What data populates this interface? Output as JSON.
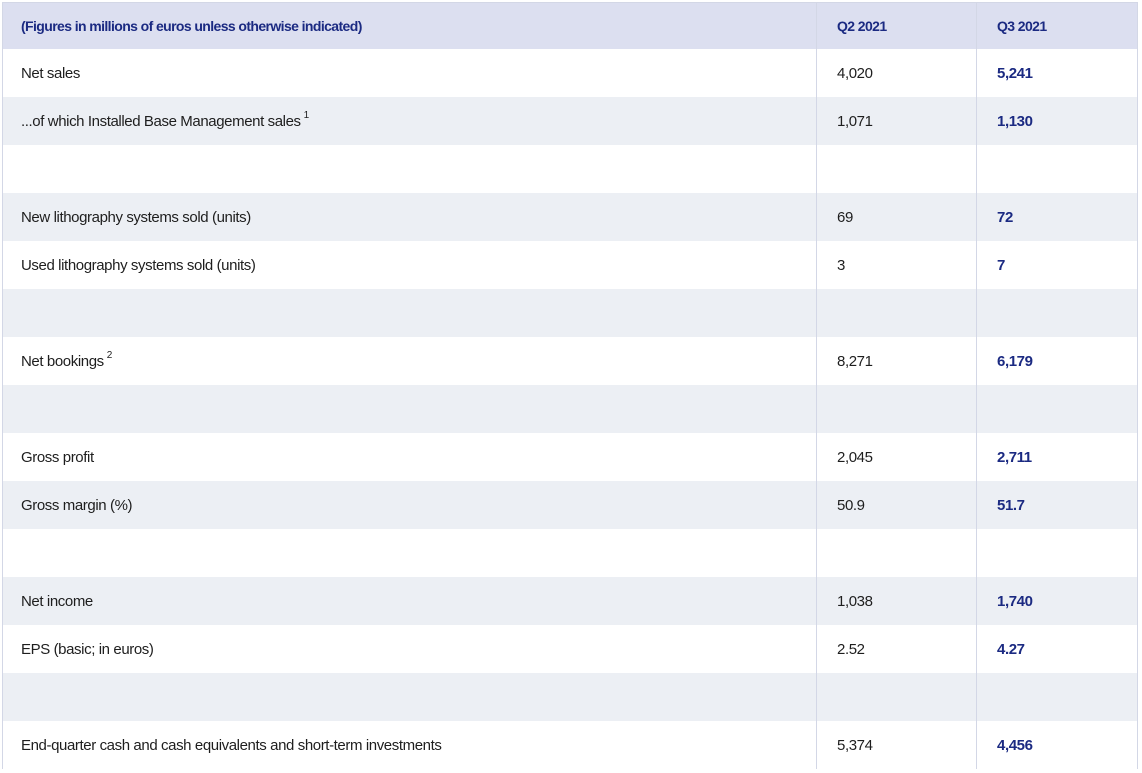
{
  "header": {
    "label": "(Figures in millions of euros unless otherwise indicated)",
    "col_q2": "Q2 2021",
    "col_q3": "Q3 2021"
  },
  "rows": [
    {
      "label": "Net sales",
      "sup": "",
      "q2": "4,020",
      "q3": "5,241"
    },
    {
      "label": "...of which Installed Base Management sales",
      "sup": "1",
      "q2": "1,071",
      "q3": "1,130"
    },
    {
      "label": "",
      "sup": "",
      "q2": "",
      "q3": ""
    },
    {
      "label": "New lithography systems sold (units)",
      "sup": "",
      "q2": "69",
      "q3": "72"
    },
    {
      "label": "Used lithography systems sold (units)",
      "sup": "",
      "q2": "3",
      "q3": "7"
    },
    {
      "label": "",
      "sup": "",
      "q2": "",
      "q3": ""
    },
    {
      "label": "Net bookings",
      "sup": "2",
      "q2": "8,271",
      "q3": "6,179"
    },
    {
      "label": "",
      "sup": "",
      "q2": "",
      "q3": ""
    },
    {
      "label": "Gross profit",
      "sup": "",
      "q2": "2,045",
      "q3": "2,711"
    },
    {
      "label": "Gross margin (%)",
      "sup": "",
      "q2": "50.9",
      "q3": "51.7"
    },
    {
      "label": "",
      "sup": "",
      "q2": "",
      "q3": ""
    },
    {
      "label": "Net income",
      "sup": "",
      "q2": "1,038",
      "q3": "1,740"
    },
    {
      "label": "EPS (basic; in euros)",
      "sup": "",
      "q2": "2.52",
      "q3": "4.27"
    },
    {
      "label": "",
      "sup": "",
      "q2": "",
      "q3": ""
    },
    {
      "label": "End-quarter cash and cash equivalents and short-term investments",
      "sup": "",
      "q2": "5,374",
      "q3": "4,456"
    }
  ],
  "colors": {
    "header_bg": "#dcdff0",
    "accent": "#1b2a82",
    "row_grey": "#eceff4",
    "row_white": "#ffffff",
    "border": "#d3d7e6"
  }
}
